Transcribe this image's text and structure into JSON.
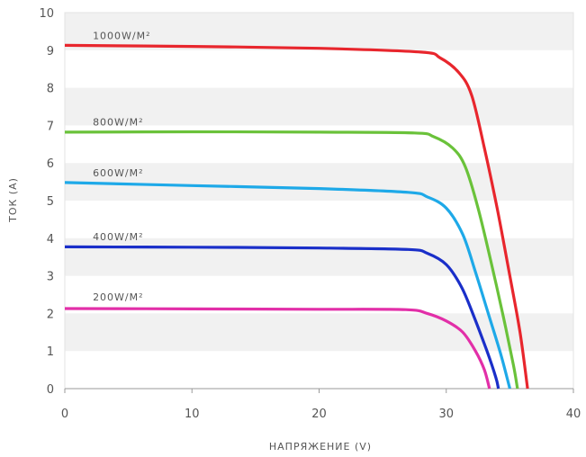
{
  "chart_data": {
    "type": "line",
    "xlabel": "НАПРЯЖЕНИЕ (V)",
    "ylabel": "ТОК (A)",
    "xlim": [
      0,
      40
    ],
    "ylim": [
      0,
      10
    ],
    "x_ticks": [
      "0",
      "10",
      "20",
      "30",
      "40"
    ],
    "y_ticks": [
      "0",
      "1",
      "2",
      "3",
      "4",
      "5",
      "6",
      "7",
      "8",
      "9",
      "10"
    ],
    "grid": "alternating horizontal bands",
    "legend": "labels above each curve",
    "series": [
      {
        "name": "1000W/M²",
        "color": "#e8262d",
        "label_at": [
          2.2,
          9.3
        ],
        "points": [
          [
            0,
            9.13
          ],
          [
            10,
            9.1
          ],
          [
            20,
            9.05
          ],
          [
            28,
            8.95
          ],
          [
            29.5,
            8.8
          ],
          [
            31,
            8.4
          ],
          [
            32,
            7.8
          ],
          [
            33,
            6.4
          ],
          [
            34,
            4.8
          ],
          [
            35,
            3.0
          ],
          [
            35.8,
            1.5
          ],
          [
            36.4,
            0
          ]
        ]
      },
      {
        "name": "800W/M²",
        "color": "#6ac23a",
        "label_at": [
          2.2,
          7.0
        ],
        "points": [
          [
            0,
            6.82
          ],
          [
            10,
            6.83
          ],
          [
            20,
            6.82
          ],
          [
            27.5,
            6.8
          ],
          [
            29,
            6.7
          ],
          [
            30.5,
            6.4
          ],
          [
            31.5,
            5.9
          ],
          [
            32.5,
            4.8
          ],
          [
            33.5,
            3.4
          ],
          [
            34.5,
            1.9
          ],
          [
            35.3,
            0.6
          ],
          [
            35.6,
            0
          ]
        ]
      },
      {
        "name": "600W/M²",
        "color": "#1ea9e8",
        "label_at": [
          2.2,
          5.65
        ],
        "points": [
          [
            0,
            5.48
          ],
          [
            10,
            5.4
          ],
          [
            20,
            5.32
          ],
          [
            27,
            5.22
          ],
          [
            28.5,
            5.1
          ],
          [
            30,
            4.8
          ],
          [
            31.3,
            4.1
          ],
          [
            32.3,
            3.1
          ],
          [
            33.3,
            2.0
          ],
          [
            34.3,
            0.9
          ],
          [
            35.0,
            0
          ]
        ]
      },
      {
        "name": "400W/M²",
        "color": "#1a2fc9",
        "label_at": [
          2.2,
          3.95
        ],
        "points": [
          [
            0,
            3.77
          ],
          [
            10,
            3.76
          ],
          [
            20,
            3.74
          ],
          [
            27,
            3.7
          ],
          [
            28.5,
            3.6
          ],
          [
            30,
            3.3
          ],
          [
            31.2,
            2.7
          ],
          [
            32.2,
            1.9
          ],
          [
            33.2,
            1.0
          ],
          [
            33.9,
            0.3
          ],
          [
            34.1,
            0
          ]
        ]
      },
      {
        "name": "200W/M²",
        "color": "#e22fa8",
        "label_at": [
          2.2,
          2.35
        ],
        "points": [
          [
            0,
            2.13
          ],
          [
            10,
            2.12
          ],
          [
            20,
            2.11
          ],
          [
            26.8,
            2.1
          ],
          [
            28.5,
            2.0
          ],
          [
            30,
            1.8
          ],
          [
            31.3,
            1.5
          ],
          [
            32.3,
            1.0
          ],
          [
            33.0,
            0.5
          ],
          [
            33.4,
            0
          ]
        ]
      }
    ]
  }
}
